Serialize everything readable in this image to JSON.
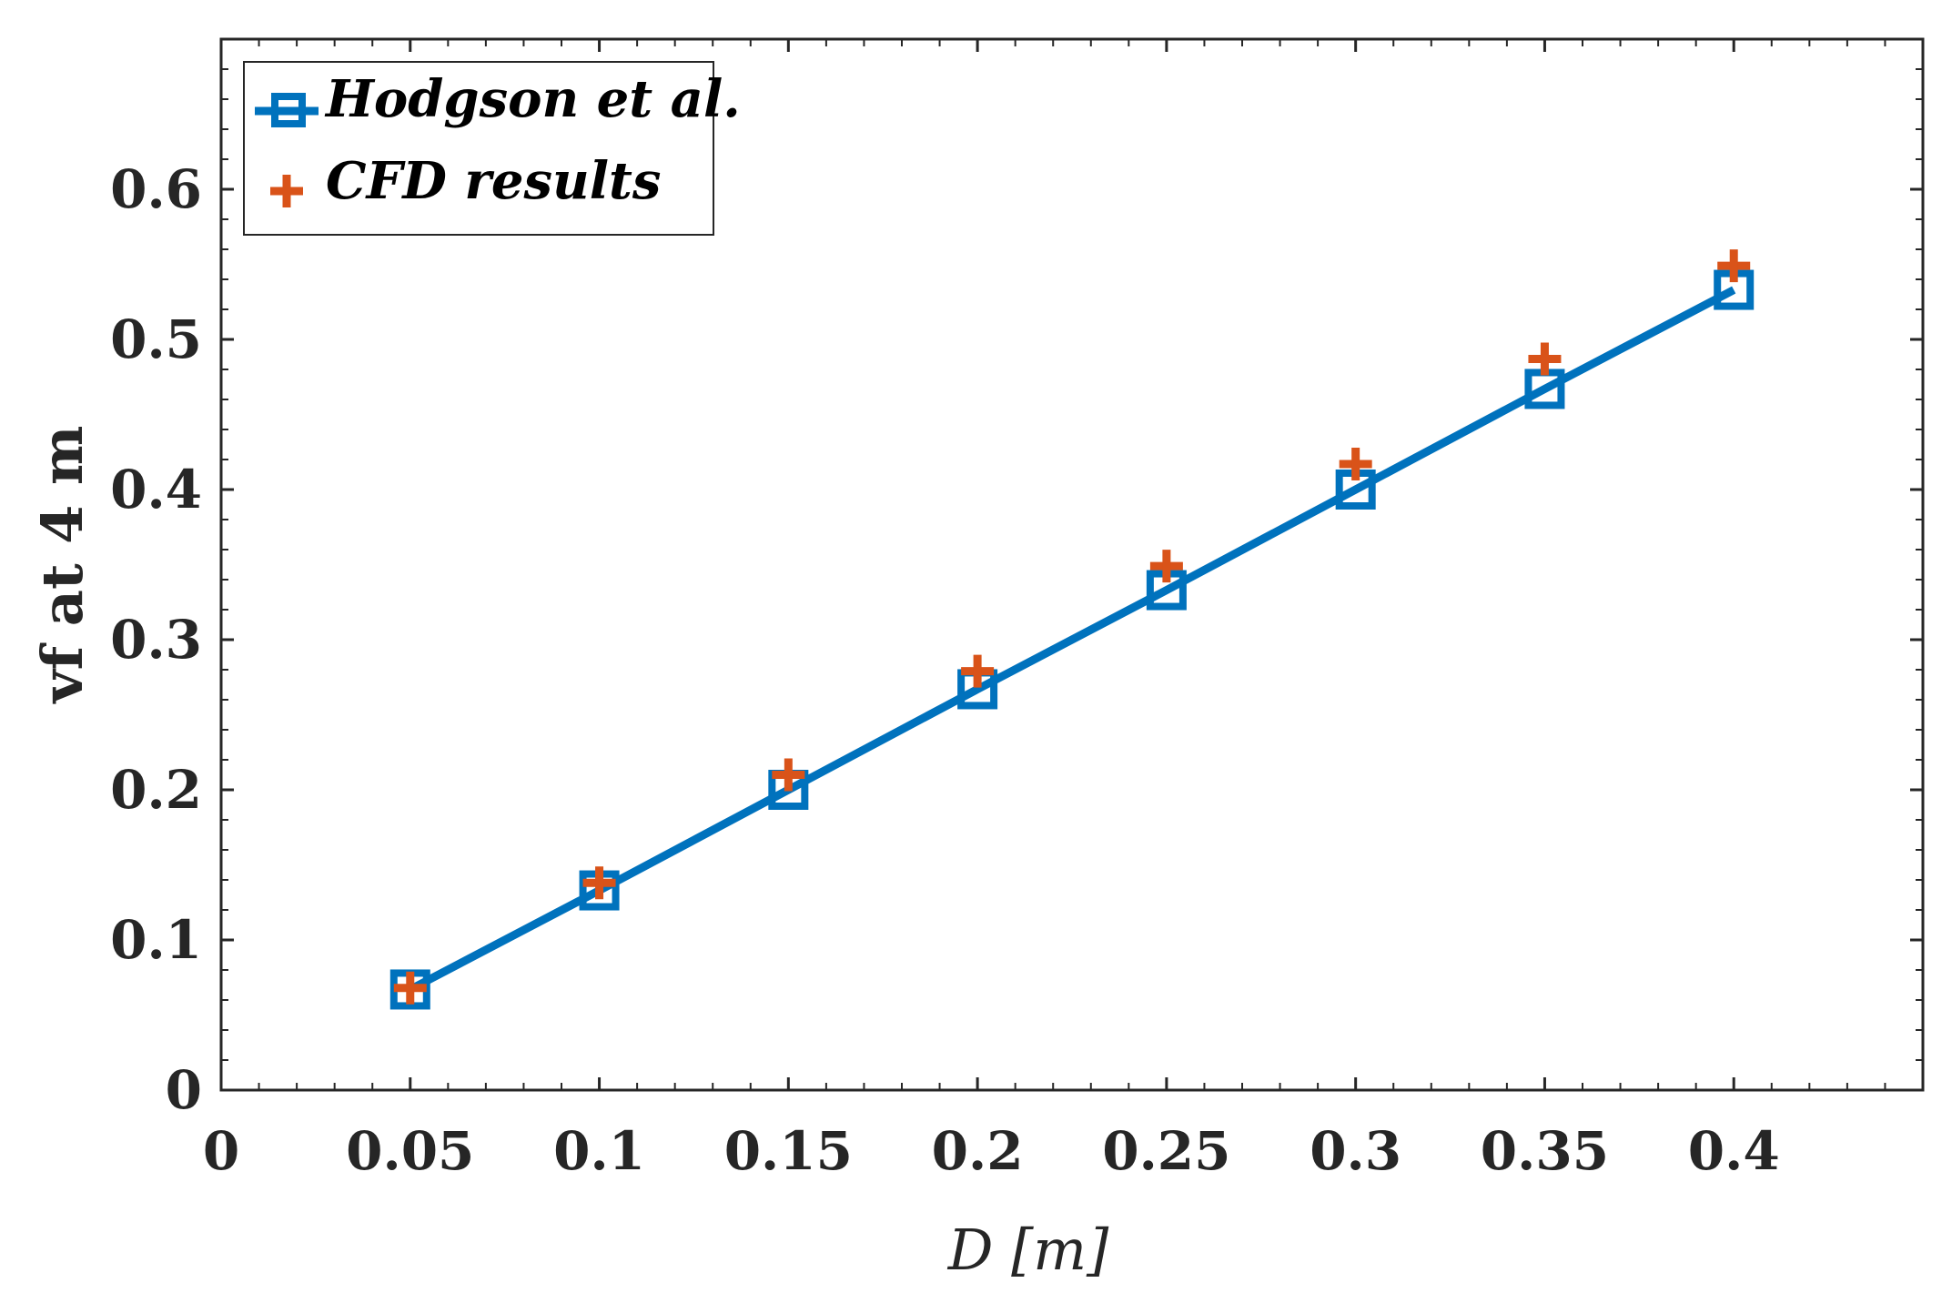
{
  "chart_data": {
    "type": "line",
    "title": "",
    "xlabel": "D [m]",
    "ylabel": "vf at 4 m",
    "xlim": [
      0,
      0.45
    ],
    "ylim": [
      0,
      0.7
    ],
    "xticks": [
      "0",
      "0.05",
      "0.1",
      "0.15",
      "0.2",
      "0.25",
      "0.3",
      "0.35",
      "0.4"
    ],
    "yticks": [
      "0",
      "0.1",
      "0.2",
      "0.3",
      "0.4",
      "0.5",
      "0.6"
    ],
    "grid": false,
    "legend_position": "top-left",
    "series": [
      {
        "name": "Hodgson et al.",
        "style": "line-square",
        "color": "#0072BD",
        "x": [
          0.05,
          0.1,
          0.15,
          0.2,
          0.25,
          0.3,
          0.35,
          0.4
        ],
        "y": [
          0.067,
          0.133,
          0.2,
          0.267,
          0.333,
          0.4,
          0.467,
          0.533
        ]
      },
      {
        "name": "CFD results",
        "style": "plus-marker",
        "color": "#D95319",
        "x": [
          0.05,
          0.1,
          0.15,
          0.2,
          0.25,
          0.3,
          0.35,
          0.4
        ],
        "y": [
          0.068,
          0.138,
          0.21,
          0.279,
          0.349,
          0.417,
          0.487,
          0.549
        ]
      }
    ]
  }
}
